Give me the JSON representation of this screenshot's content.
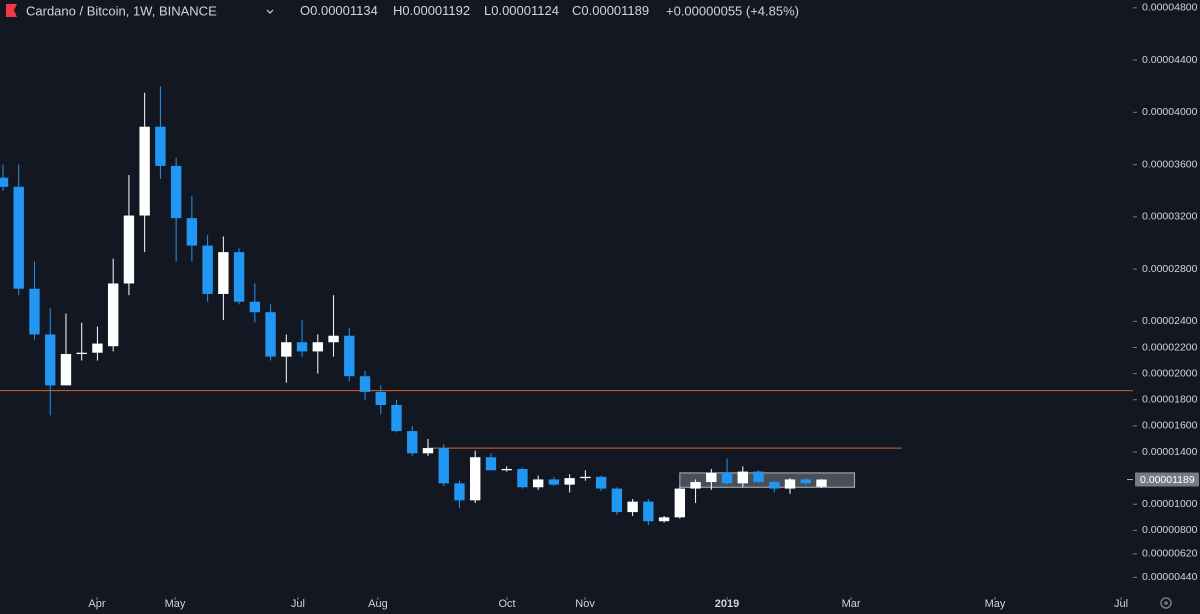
{
  "chart_data": {
    "type": "candlestick",
    "header": {
      "title": "Cardano / Bitcoin, 1W, BINANCE",
      "fields": [
        {
          "key": "O",
          "text": "0.00001134"
        },
        {
          "key": "H",
          "text": "0.00001192"
        },
        {
          "key": "L",
          "text": "0.00001124"
        },
        {
          "key": "C",
          "text": "0.00001189"
        }
      ],
      "change": "+0.00000055 (+4.85%)"
    },
    "series": [
      {
        "up_color": "#ffffff",
        "down_color": "#2196f3",
        "open": [
          3.5e-05,
          3.43e-05,
          2.65e-05,
          2.3e-05,
          1.91e-05,
          2.15e-05,
          2.16e-05,
          2.21e-05,
          2.69e-05,
          3.21e-05,
          3.89e-05,
          3.59e-05,
          3.19e-05,
          2.98e-05,
          2.61e-05,
          2.93e-05,
          2.55e-05,
          2.47e-05,
          2.13e-05,
          2.24e-05,
          2.17e-05,
          2.24e-05,
          2.29e-05,
          1.98e-05,
          1.86e-05,
          1.76e-05,
          1.56e-05,
          1.39e-05,
          1.43e-05,
          1.16e-05,
          1.03e-05,
          1.36e-05,
          1.26e-05,
          1.27e-05,
          1.13e-05,
          1.19e-05,
          1.15e-05,
          1.2e-05,
          1.21e-05,
          1.12e-05,
          9.4e-06,
          1.02e-05,
          8.7e-06,
          9e-06,
          1.12e-05,
          1.17e-05,
          1.24e-05,
          1.16e-05,
          1.25e-05,
          1.17e-05,
          1.12e-05,
          1.19e-05,
          1.134e-05
        ],
        "high": [
          3.6e-05,
          3.6e-05,
          2.86e-05,
          2.5e-05,
          2.46e-05,
          2.39e-05,
          2.36e-05,
          2.88e-05,
          3.52e-05,
          4.15e-05,
          4.2e-05,
          3.65e-05,
          3.36e-05,
          3.06e-05,
          3.05e-05,
          2.96e-05,
          2.69e-05,
          2.53e-05,
          2.3e-05,
          2.41e-05,
          2.3e-05,
          2.6e-05,
          2.35e-05,
          2.02e-05,
          1.91e-05,
          1.8e-05,
          1.6e-05,
          1.5e-05,
          1.46e-05,
          1.18e-05,
          1.41e-05,
          1.39e-05,
          1.29e-05,
          1.28e-05,
          1.22e-05,
          1.21e-05,
          1.23e-05,
          1.26e-05,
          1.22e-05,
          1.13e-05,
          1.04e-05,
          1.04e-05,
          9.1e-06,
          1.13e-05,
          1.19e-05,
          1.27e-05,
          1.35e-05,
          1.29e-05,
          1.26e-05,
          1.18e-05,
          1.2e-05,
          1.2e-05,
          1.192e-05
        ],
        "low": [
          3.4e-05,
          2.6e-05,
          2.26e-05,
          1.68e-05,
          1.91e-05,
          2.1e-05,
          2.1e-05,
          2.17e-05,
          2.6e-05,
          2.93e-05,
          3.49e-05,
          2.86e-05,
          2.86e-05,
          2.55e-05,
          2.41e-05,
          2.53e-05,
          2.39e-05,
          2.1e-05,
          1.93e-05,
          2.13e-05,
          2e-05,
          2.13e-05,
          1.94e-05,
          1.8e-05,
          1.69e-05,
          1.55e-05,
          1.37e-05,
          1.37e-05,
          1.14e-05,
          9.7e-06,
          1.01e-05,
          1.26e-05,
          1.25e-05,
          1.12e-05,
          1.11e-05,
          1.14e-05,
          1.09e-05,
          1.18e-05,
          1.1e-05,
          9.2e-06,
          9.1e-06,
          8.4e-06,
          8.6e-06,
          8.9e-06,
          1.01e-05,
          1.11e-05,
          1.15e-05,
          1.13e-05,
          1.16e-05,
          1.09e-05,
          1.08e-05,
          1.15e-05,
          1.124e-05
        ],
        "close": [
          3.43e-05,
          2.65e-05,
          2.3e-05,
          1.91e-05,
          2.15e-05,
          2.16e-05,
          2.23e-05,
          2.69e-05,
          3.21e-05,
          3.89e-05,
          3.59e-05,
          3.19e-05,
          2.98e-05,
          2.61e-05,
          2.93e-05,
          2.55e-05,
          2.47e-05,
          2.13e-05,
          2.24e-05,
          2.17e-05,
          2.24e-05,
          2.29e-05,
          1.98e-05,
          1.86e-05,
          1.76e-05,
          1.56e-05,
          1.39e-05,
          1.43e-05,
          1.16e-05,
          1.03e-05,
          1.36e-05,
          1.26e-05,
          1.27e-05,
          1.13e-05,
          1.19e-05,
          1.15e-05,
          1.2e-05,
          1.21e-05,
          1.12e-05,
          9.4e-06,
          1.02e-05,
          8.7e-06,
          9e-06,
          1.12e-05,
          1.17e-05,
          1.24e-05,
          1.16e-05,
          1.25e-05,
          1.17e-05,
          1.12e-05,
          1.19e-05,
          1.16e-05,
          1.189e-05
        ]
      }
    ],
    "last_price_label": "0.00001189",
    "xlim": [
      -0.19,
      71.79
    ],
    "xticks": [
      {
        "value": 5.97,
        "label": "Apr"
      },
      {
        "value": 10.93,
        "label": "May"
      },
      {
        "value": 18.74,
        "label": "Jul"
      },
      {
        "value": 23.82,
        "label": "Aug"
      },
      {
        "value": 32.02,
        "label": "Oct"
      },
      {
        "value": 36.98,
        "label": "Nov"
      },
      {
        "value": 46.0,
        "label": "2019",
        "bold": true
      },
      {
        "value": 53.88,
        "label": "Mar"
      },
      {
        "value": 63.02,
        "label": "May"
      },
      {
        "value": 71.03,
        "label": "Jul"
      }
    ],
    "ylim": [
      2.9e-06,
      4.86e-05
    ],
    "yticks": [
      {
        "value": 4.8e-05,
        "label": "0.00004800"
      },
      {
        "value": 4.4e-05,
        "label": "0.00004400"
      },
      {
        "value": 4e-05,
        "label": "0.00004000"
      },
      {
        "value": 3.6e-05,
        "label": "0.00003600"
      },
      {
        "value": 3.2e-05,
        "label": "0.00003200"
      },
      {
        "value": 2.8e-05,
        "label": "0.00002800"
      },
      {
        "value": 2.4e-05,
        "label": "0.00002400"
      },
      {
        "value": 2.2e-05,
        "label": "0.00002200"
      },
      {
        "value": 2e-05,
        "label": "0.00002000"
      },
      {
        "value": 1.8e-05,
        "label": "0.00001800"
      },
      {
        "value": 1.6e-05,
        "label": "0.00001600"
      },
      {
        "value": 1.4e-05,
        "label": "0.00001400"
      },
      {
        "value": 1e-05,
        "label": "0.00001000"
      },
      {
        "value": 8e-06,
        "label": "0.00000800"
      },
      {
        "value": 6.2e-06,
        "label": "0.00000620"
      },
      {
        "value": 4.4e-06,
        "label": "0.00000440"
      }
    ],
    "hlines": [
      {
        "value": 1.87e-05,
        "color": "#d9612f"
      },
      {
        "value": 1.43e-05,
        "from": 27,
        "to": 57.1,
        "color": "#d9612f"
      }
    ],
    "box": {
      "top": 1.24e-05,
      "bottom": 1.13e-05,
      "from": 43,
      "to": 54.1,
      "color": "#b2b5be"
    }
  }
}
